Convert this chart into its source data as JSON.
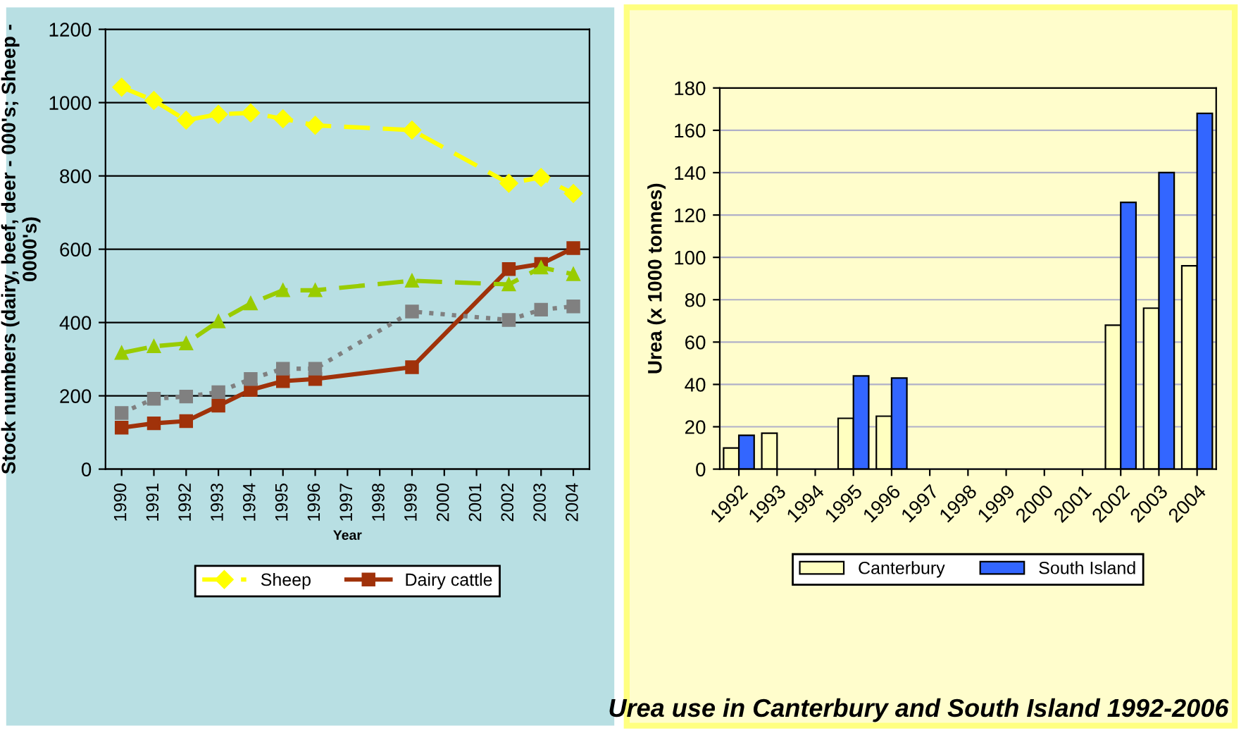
{
  "chart_data": [
    {
      "type": "line",
      "xlabel": "Year",
      "ylabel": "Stock numbers (dairy, beef, deer - 000's; Sheep - 0000's)",
      "categories": [
        "1990",
        "1991",
        "1992",
        "1993",
        "1994",
        "1995",
        "1996",
        "1997",
        "1998",
        "1999",
        "2000",
        "2001",
        "2002",
        "2003",
        "2004"
      ],
      "ylim": [
        0,
        1200
      ],
      "yticks": [
        0,
        200,
        400,
        600,
        800,
        1000,
        1200
      ],
      "grid": "y",
      "legend": "bottom",
      "series": [
        {
          "name": "Sheep",
          "color": "#ffff00",
          "marker": "diamond",
          "line_style": "dashed",
          "values": [
            1042,
            1006,
            952,
            968,
            972,
            956,
            938,
            null,
            null,
            925,
            null,
            null,
            780,
            796,
            752
          ]
        },
        {
          "name": "Dairy cattle",
          "color": "#a0320a",
          "marker": "square",
          "line_style": "solid",
          "values": [
            113,
            125,
            131,
            173,
            216,
            240,
            246,
            null,
            null,
            278,
            null,
            null,
            546,
            560,
            603
          ]
        },
        {
          "color": "#99cc00",
          "marker": "triangle",
          "line_style": "dashed",
          "values": [
            317,
            335,
            343,
            403,
            452,
            488,
            488,
            null,
            null,
            514,
            null,
            null,
            504,
            550,
            532
          ]
        },
        {
          "color": "#808080",
          "marker": "square",
          "line_style": "dotted",
          "values": [
            153,
            192,
            198,
            210,
            246,
            274,
            274,
            null,
            null,
            430,
            null,
            null,
            407,
            435,
            444
          ]
        }
      ]
    },
    {
      "type": "bar",
      "title": "Urea use in Canterbury and South Island 1992-2006",
      "ylabel": "Urea (x 1000 tonnes)",
      "categories": [
        "1992",
        "1993",
        "1994",
        "1995",
        "1996",
        "1997",
        "1998",
        "1999",
        "2000",
        "2001",
        "2002",
        "2003",
        "2004"
      ],
      "ylim": [
        0,
        180
      ],
      "yticks": [
        0,
        20,
        40,
        60,
        80,
        100,
        120,
        140,
        160,
        180
      ],
      "grid": "y",
      "legend": "bottom",
      "series": [
        {
          "name": "Canterbury",
          "color": "#ffffc0",
          "values": [
            10,
            17,
            null,
            24,
            25,
            null,
            null,
            null,
            null,
            null,
            68,
            76,
            96
          ]
        },
        {
          "name": "South Island",
          "color": "#3366ff",
          "values": [
            16,
            null,
            null,
            44,
            43,
            null,
            null,
            null,
            null,
            null,
            126,
            140,
            168
          ]
        }
      ]
    }
  ]
}
